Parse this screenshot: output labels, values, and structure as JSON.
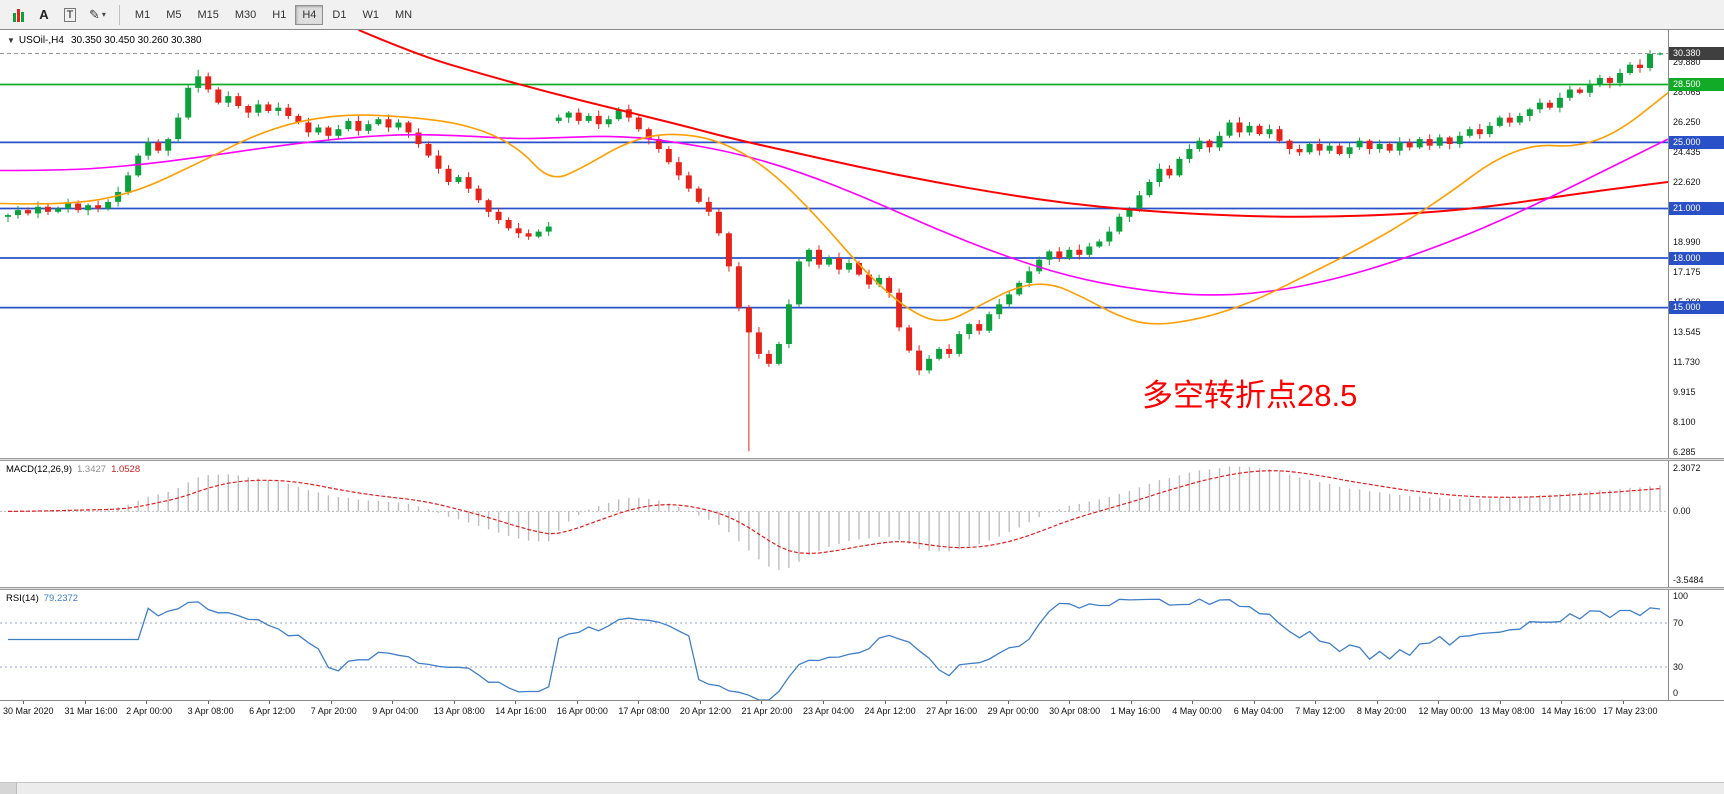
{
  "toolbar": {
    "text_tool": "A",
    "type_tool": "T",
    "pencil_glyph": "✎",
    "caret_glyph": "▾",
    "timeframes": [
      {
        "label": "M1",
        "active": false
      },
      {
        "label": "M5",
        "active": false
      },
      {
        "label": "M15",
        "active": false
      },
      {
        "label": "M30",
        "active": false
      },
      {
        "label": "H1",
        "active": false
      },
      {
        "label": "H4",
        "active": true
      },
      {
        "label": "D1",
        "active": false
      },
      {
        "label": "W1",
        "active": false
      },
      {
        "label": "MN",
        "active": false
      }
    ]
  },
  "chart": {
    "header": {
      "collapse_glyph": "▼",
      "symbol_tf": "USOil-,H4",
      "ohlc": "30.350 30.450 30.260 30.380"
    },
    "annotation": {
      "text": "多空转折点28.5",
      "color": "#fe0000"
    },
    "price_axis": {
      "labels": [
        "29.880",
        "28.065",
        "26.250",
        "24.435",
        "22.620",
        "20.805",
        "18.990",
        "17.175",
        "15.360",
        "13.545",
        "11.730",
        "9.915",
        "8.100",
        "6.285"
      ]
    }
  },
  "chart_data": {
    "type": "candlestick",
    "symbol": "USOil-",
    "timeframe": "H4",
    "ohlc_display": {
      "open": "30.350",
      "high": "30.450",
      "low": "30.260",
      "close": "30.380"
    },
    "price_range": {
      "top": 31.8,
      "bottom": 5.9
    },
    "up_color": "#0ca13c",
    "down_color": "#e5231b",
    "candles": {
      "first_open": 20.5,
      "closes": [
        20.6,
        20.9,
        20.7,
        21.1,
        20.8,
        21.0,
        21.3,
        20.9,
        21.2,
        21.0,
        21.4,
        22.0,
        23.0,
        24.2,
        25.0,
        24.5,
        25.2,
        26.5,
        28.3,
        29.0,
        28.2,
        27.4,
        27.8,
        27.2,
        26.8,
        27.3,
        26.9,
        27.1,
        26.6,
        26.2,
        25.6,
        25.9,
        25.4,
        25.8,
        26.3,
        25.7,
        26.1,
        26.4,
        25.9,
        26.2,
        25.6,
        24.9,
        24.2,
        23.4,
        22.6,
        22.9,
        22.2,
        21.5,
        20.8,
        20.3,
        19.8,
        19.5,
        19.3,
        19.6,
        19.9,
        26.5,
        26.8,
        26.3,
        26.6,
        26.1,
        26.4,
        27.0,
        26.5,
        25.8,
        25.2,
        24.6,
        23.8,
        23.0,
        22.2,
        21.4,
        20.8,
        19.5,
        17.5,
        15.0,
        13.5,
        12.2,
        11.6,
        12.8,
        15.2,
        17.8,
        18.5,
        17.6,
        18.0,
        17.3,
        17.7,
        17.0,
        16.4,
        16.8,
        15.9,
        13.8,
        12.4,
        11.2,
        11.9,
        12.5,
        12.2,
        13.4,
        14.0,
        13.6,
        14.6,
        15.2,
        15.8,
        16.5,
        17.2,
        17.9,
        18.4,
        18.0,
        18.5,
        18.2,
        18.7,
        19.0,
        19.6,
        20.5,
        21.0,
        21.8,
        22.6,
        23.4,
        23.0,
        24.0,
        24.6,
        25.1,
        24.7,
        25.4,
        26.2,
        25.6,
        26.0,
        25.5,
        25.8,
        25.1,
        24.6,
        24.4,
        24.9,
        24.5,
        24.8,
        24.3,
        24.7,
        25.1,
        24.6,
        24.9,
        24.5,
        25.0,
        24.7,
        25.2,
        24.8,
        25.3,
        24.9,
        25.4,
        25.8,
        25.5,
        26.0,
        26.5,
        26.2,
        26.6,
        27.0,
        27.4,
        27.1,
        27.7,
        28.2,
        28.0,
        28.5,
        28.9,
        28.6,
        29.2,
        29.7,
        29.5,
        30.35,
        30.38
      ],
      "open_overrides": {
        "55": 26.3
      },
      "high_overrides": {
        "19": 29.4,
        "165": 30.45
      },
      "low_overrides": {
        "74": 6.3,
        "165": 30.26
      }
    },
    "moving_averages": [
      {
        "name": "ma-slow-red",
        "color": "#fe0000",
        "width": 2,
        "points": [
          [
            0.215,
            31.8
          ],
          [
            0.25,
            30.3
          ],
          [
            0.29,
            29.1
          ],
          [
            0.33,
            28.0
          ],
          [
            0.37,
            27.0
          ],
          [
            0.41,
            26.0
          ],
          [
            0.44,
            25.2
          ],
          [
            0.48,
            24.3
          ],
          [
            0.52,
            23.4
          ],
          [
            0.56,
            22.6
          ],
          [
            0.6,
            21.9
          ],
          [
            0.64,
            21.3
          ],
          [
            0.68,
            20.9
          ],
          [
            0.72,
            20.65
          ],
          [
            0.76,
            20.5
          ],
          [
            0.8,
            20.5
          ],
          [
            0.84,
            20.65
          ],
          [
            0.88,
            20.95
          ],
          [
            0.92,
            21.5
          ],
          [
            0.96,
            22.1
          ],
          [
            1.0,
            22.6
          ]
        ]
      },
      {
        "name": "ma-medium-magenta",
        "color": "#ff00ff",
        "width": 1.6,
        "points": [
          [
            0,
            23.3
          ],
          [
            0.04,
            23.3
          ],
          [
            0.08,
            23.6
          ],
          [
            0.12,
            24.1
          ],
          [
            0.16,
            24.7
          ],
          [
            0.2,
            25.2
          ],
          [
            0.24,
            25.5
          ],
          [
            0.28,
            25.4
          ],
          [
            0.31,
            25.2
          ],
          [
            0.34,
            25.3
          ],
          [
            0.37,
            25.4
          ],
          [
            0.4,
            25.1
          ],
          [
            0.44,
            24.4
          ],
          [
            0.48,
            23.2
          ],
          [
            0.52,
            21.6
          ],
          [
            0.56,
            19.8
          ],
          [
            0.6,
            18.2
          ],
          [
            0.64,
            16.9
          ],
          [
            0.68,
            16.1
          ],
          [
            0.72,
            15.7
          ],
          [
            0.76,
            15.9
          ],
          [
            0.8,
            16.7
          ],
          [
            0.84,
            17.9
          ],
          [
            0.88,
            19.4
          ],
          [
            0.92,
            21.2
          ],
          [
            0.96,
            23.2
          ],
          [
            1.0,
            25.2
          ]
        ]
      },
      {
        "name": "ma-fast-orange",
        "color": "#ff9e00",
        "width": 1.6,
        "points": [
          [
            0,
            21.3
          ],
          [
            0.04,
            21.2
          ],
          [
            0.08,
            21.9
          ],
          [
            0.12,
            23.8
          ],
          [
            0.16,
            25.8
          ],
          [
            0.2,
            26.7
          ],
          [
            0.24,
            26.6
          ],
          [
            0.28,
            26.1
          ],
          [
            0.31,
            24.8
          ],
          [
            0.33,
            22.6
          ],
          [
            0.35,
            23.5
          ],
          [
            0.375,
            25.0
          ],
          [
            0.4,
            25.6
          ],
          [
            0.43,
            25.2
          ],
          [
            0.46,
            23.5
          ],
          [
            0.49,
            20.5
          ],
          [
            0.52,
            17.0
          ],
          [
            0.545,
            14.8
          ],
          [
            0.565,
            14.0
          ],
          [
            0.585,
            15.0
          ],
          [
            0.61,
            16.3
          ],
          [
            0.63,
            16.5
          ],
          [
            0.65,
            15.6
          ],
          [
            0.67,
            14.5
          ],
          [
            0.69,
            13.9
          ],
          [
            0.72,
            14.3
          ],
          [
            0.75,
            15.3
          ],
          [
            0.78,
            16.8
          ],
          [
            0.81,
            18.3
          ],
          [
            0.84,
            20.0
          ],
          [
            0.87,
            22.0
          ],
          [
            0.895,
            23.9
          ],
          [
            0.92,
            24.9
          ],
          [
            0.945,
            24.7
          ],
          [
            0.97,
            25.6
          ],
          [
            1.0,
            28.0
          ]
        ]
      }
    ],
    "horizontal_lines": [
      {
        "price": 28.5,
        "label": "28.500",
        "color": "#12ab27"
      },
      {
        "price": 25.0,
        "label": "25.000",
        "color": "#2a50c8"
      },
      {
        "price": 21.0,
        "label": "21.000",
        "color": "#2a50c8"
      },
      {
        "price": 18.0,
        "label": "18.000",
        "color": "#2a50c8"
      },
      {
        "price": 15.0,
        "label": "15.000",
        "color": "#2a50c8"
      }
    ],
    "current_price": {
      "value": 30.38,
      "label": "30.380",
      "line_color": "#9a9a9a",
      "tag_color": "#3f3f3f"
    }
  },
  "macd_panel": {
    "label": "MACD(12,26,9)",
    "main_value": "1.3427",
    "signal_value": "1.0528",
    "params": {
      "fast": 12,
      "slow": 26,
      "signal": 9
    },
    "scale_labels": [
      "2.3072",
      "0.00",
      "-3.5484"
    ],
    "range": [
      -3.9,
      2.6
    ],
    "histogram_color": "#bdbdbd",
    "signal_color": "#e02020"
  },
  "rsi_panel": {
    "label": "RSI(14)",
    "value": "79.2372",
    "period": 14,
    "scale_labels": [
      "100",
      "70",
      "30",
      "0"
    ],
    "levels": [
      70,
      30
    ],
    "line_color": "#3f7ec8",
    "range": [
      0,
      100
    ]
  },
  "time_axis": {
    "labels": [
      "30 Mar 2020",
      "31 Mar 16:00",
      "2 Apr 00:00",
      "3 Apr 08:00",
      "6 Apr 12:00",
      "7 Apr 20:00",
      "9 Apr 04:00",
      "13 Apr 08:00",
      "14 Apr 16:00",
      "16 Apr 00:00",
      "17 Apr 08:00",
      "20 Apr 12:00",
      "21 Apr 20:00",
      "23 Apr 04:00",
      "24 Apr 12:00",
      "27 Apr 16:00",
      "29 Apr 00:00",
      "30 Apr 08:00",
      "1 May 16:00",
      "4 May 00:00",
      "6 May 04:00",
      "7 May 12:00",
      "8 May 20:00",
      "12 May 00:00",
      "13 May 08:00",
      "14 May 16:00",
      "17 May 23:00"
    ]
  }
}
